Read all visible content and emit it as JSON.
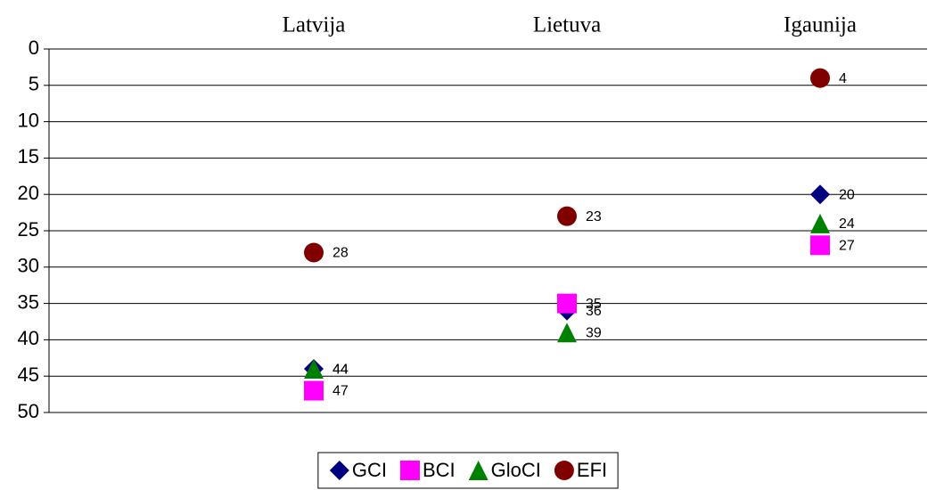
{
  "chart_data": {
    "type": "scatter",
    "categories": [
      "Latvija",
      "Lietuva",
      "Igaunija"
    ],
    "series": [
      {
        "name": "GCI",
        "color": "#000080",
        "marker": "diamond",
        "values": [
          44,
          36,
          20
        ]
      },
      {
        "name": "BCI",
        "color": "#ff00ff",
        "marker": "square",
        "values": [
          47,
          35,
          27
        ]
      },
      {
        "name": "GloCI",
        "color": "#008000",
        "marker": "triangle",
        "values": [
          44,
          39,
          24
        ]
      },
      {
        "name": "EFI",
        "color": "#800000",
        "marker": "circle",
        "values": [
          28,
          23,
          4
        ]
      }
    ],
    "ylim": [
      50,
      0
    ],
    "yticks": [
      0,
      5,
      10,
      15,
      20,
      25,
      30,
      35,
      40,
      45,
      50
    ],
    "grid": true,
    "legend": "bottom"
  }
}
